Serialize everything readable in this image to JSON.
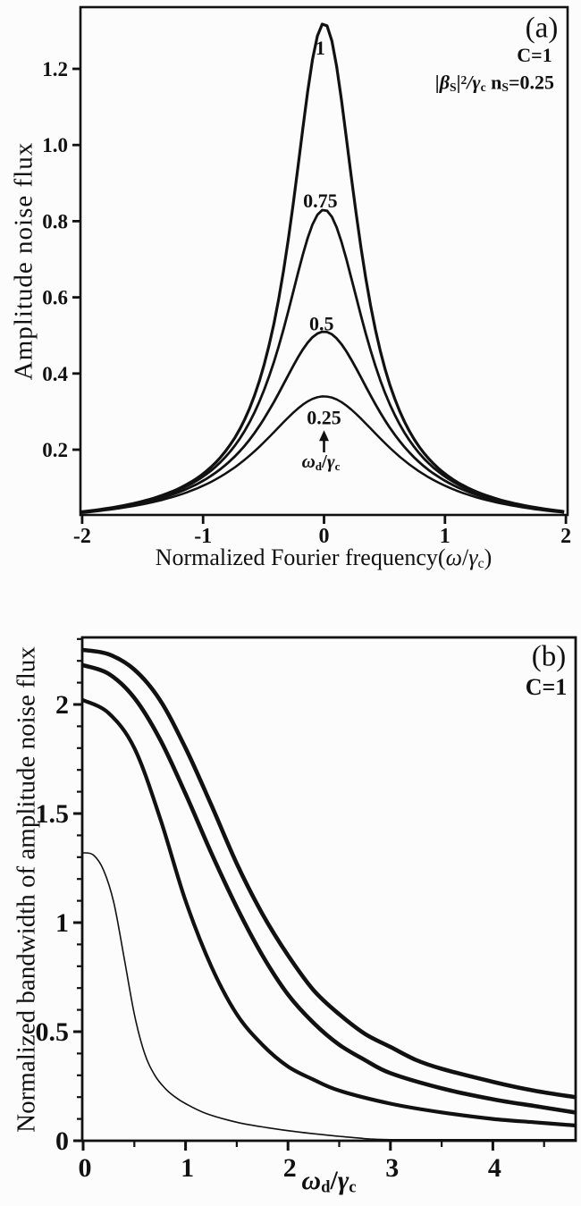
{
  "figure": {
    "ink_color": "#111111",
    "background": "#fcfcfc",
    "panel_a": {
      "tag": "(a)",
      "c_annotation": "C=1",
      "beta_annotation": {
        "p1": "|β",
        "sub1": "S",
        "p2": "|",
        "sup2": "2",
        "p3": "/γ",
        "sub3": "c",
        "p4": " n",
        "sub4": "S",
        "p5": "=0.25"
      },
      "ylabel": "Amplitude noise flux",
      "xlabel_parts": {
        "pre": "Normalized Fourier frequency(",
        "omega": "ω",
        "slash": "/",
        "gamma": "γ",
        "gsub": "c",
        "post": ")"
      },
      "arrow_label_parts": {
        "omega": "ω",
        "osub": "d",
        "slash": "/",
        "gamma": "γ",
        "gsub": "c"
      }
    },
    "panel_b": {
      "tag": "(b)",
      "c_annotation": "C=1",
      "ylabel": "Normalized bandwidth of amplitude noise flux",
      "xlabel_parts": {
        "omega": "ω",
        "osub": "d",
        "slash": "/",
        "gamma": "γ",
        "gsub": "c"
      }
    }
  },
  "chart_data": [
    {
      "id": "panel-a",
      "type": "line",
      "title": "",
      "xlabel": "Normalized Fourier frequency(ω/γ_c)",
      "ylabel": "Amplitude noise flux",
      "xlim": [
        -2.015,
        2.01
      ],
      "ylim": [
        0.028,
        1.36
      ],
      "xticks": [
        -2,
        -1,
        0,
        1,
        2
      ],
      "xtick_labels": [
        "-2",
        "-1",
        "0",
        "1",
        "2"
      ],
      "yticks": [
        0.2,
        0.4,
        0.6,
        0.8,
        1.0,
        1.2
      ],
      "ytick_labels": [
        "0.2",
        "0.4",
        "0.6",
        "0.8",
        "1.0",
        "1.2"
      ],
      "grid": false,
      "legend": "inline curve labels give omega_d/gamma_c value of each peak",
      "curve_model": "lorentzian: y = peak*hwhm^2/((x-center)^2+hwhm^2)",
      "series": [
        {
          "label": "1",
          "peak": 1.32,
          "center": 0,
          "hwhm": 0.34,
          "stroke_width": 3.2,
          "label_at": [
            -0.03,
            1.256
          ]
        },
        {
          "label": "0.75",
          "peak": 0.83,
          "center": 0,
          "hwhm": 0.43,
          "stroke_width": 2.8,
          "label_at": [
            -0.03,
            0.855
          ]
        },
        {
          "label": "0.5",
          "peak": 0.51,
          "center": 0,
          "hwhm": 0.55,
          "stroke_width": 2.8,
          "label_at": [
            -0.02,
            0.532
          ]
        },
        {
          "label": "0.25",
          "peak": 0.34,
          "center": 0,
          "hwhm": 0.67,
          "stroke_width": 2.5,
          "label_at": [
            0.0,
            0.286
          ]
        }
      ],
      "annotation_arrow": {
        "x": 0,
        "tip_y": 0.251,
        "tail_y": 0.193,
        "label": "ω_d/γ_c",
        "label_y": 0.169
      }
    },
    {
      "id": "panel-b",
      "type": "line",
      "title": "",
      "xlabel": "ω_d/γ_c",
      "ylabel": "Normalized bandwidth of amplitude noise flux",
      "xlim": [
        0,
        4.8
      ],
      "ylim": [
        0,
        2.31
      ],
      "xticks": [
        0,
        1,
        2,
        3,
        4
      ],
      "xtick_labels": [
        "0",
        "1",
        "2",
        "3",
        "4"
      ],
      "x_minor_step": 0.5,
      "yticks": [
        0,
        0.5,
        1,
        1.5,
        2
      ],
      "ytick_labels": [
        "0",
        "0.5",
        "1",
        "1.5",
        "2"
      ],
      "y_minor_step": 0.1,
      "grid": false,
      "series": [
        {
          "name": "outer-thick",
          "stroke_width": 4.6,
          "x": [
            0,
            0.25,
            0.5,
            0.75,
            1.0,
            1.25,
            1.5,
            1.75,
            2.0,
            2.25,
            2.5,
            2.75,
            3.0,
            3.25,
            3.5,
            4.0,
            4.4,
            4.8
          ],
          "y": [
            2.25,
            2.23,
            2.16,
            2.02,
            1.8,
            1.54,
            1.27,
            1.04,
            0.85,
            0.69,
            0.58,
            0.49,
            0.43,
            0.37,
            0.33,
            0.27,
            0.23,
            0.2
          ]
        },
        {
          "name": "middle-thick",
          "stroke_width": 4.6,
          "x": [
            0,
            0.25,
            0.5,
            0.75,
            1.0,
            1.25,
            1.5,
            1.75,
            2.0,
            2.25,
            2.5,
            2.75,
            3.0,
            3.5,
            4.0,
            4.4,
            4.8
          ],
          "y": [
            2.18,
            2.14,
            2.03,
            1.84,
            1.59,
            1.32,
            1.07,
            0.85,
            0.67,
            0.54,
            0.44,
            0.37,
            0.31,
            0.24,
            0.19,
            0.16,
            0.13
          ]
        },
        {
          "name": "inner-thick",
          "stroke_width": 4.2,
          "x": [
            0,
            0.25,
            0.5,
            0.75,
            1.0,
            1.25,
            1.5,
            1.75,
            2.0,
            2.25,
            2.5,
            3.0,
            3.5,
            4.0,
            4.4,
            4.8
          ],
          "y": [
            2.02,
            1.96,
            1.8,
            1.48,
            1.1,
            0.8,
            0.58,
            0.44,
            0.34,
            0.28,
            0.23,
            0.17,
            0.13,
            0.1,
            0.085,
            0.07
          ]
        },
        {
          "name": "thin",
          "stroke_width": 1.6,
          "x": [
            0,
            0.1,
            0.2,
            0.3,
            0.4,
            0.5,
            0.6,
            0.7,
            0.8,
            0.9,
            1.0,
            1.2,
            1.5,
            1.8,
            2.1,
            2.4,
            2.7,
            2.8,
            3.0,
            3.5,
            4.0,
            4.8
          ],
          "y": [
            1.32,
            1.31,
            1.24,
            1.09,
            0.84,
            0.58,
            0.4,
            0.3,
            0.24,
            0.2,
            0.17,
            0.125,
            0.085,
            0.06,
            0.04,
            0.025,
            0.012,
            0.008,
            0.003,
            0.003,
            0.003,
            0.003
          ]
        }
      ]
    }
  ]
}
